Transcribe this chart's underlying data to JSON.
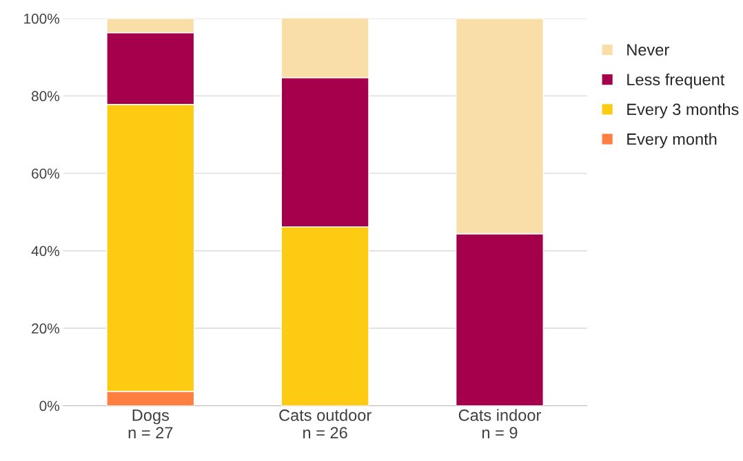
{
  "chart_data": {
    "type": "bar",
    "stacked": true,
    "categories": [
      "Dogs\nn = 27",
      "Cats outdoor\nn = 26",
      "Cats indoor\nn = 9"
    ],
    "series": [
      {
        "name": "Every month",
        "color": "#ff7f41",
        "values": [
          3.7,
          0,
          0
        ]
      },
      {
        "name": "Every 3 months",
        "color": "#fdcc12",
        "values": [
          74.1,
          46.2,
          0
        ]
      },
      {
        "name": "Less frequent",
        "color": "#a5004b",
        "values": [
          18.5,
          38.5,
          44.4
        ]
      },
      {
        "name": "Never",
        "color": "#f9dfa7",
        "values": [
          3.7,
          15.4,
          55.6
        ]
      }
    ],
    "ylim": [
      0,
      100
    ],
    "yticks": [
      {
        "value": 0,
        "label": "0%"
      },
      {
        "value": 20,
        "label": "20%"
      },
      {
        "value": 40,
        "label": "40%"
      },
      {
        "value": 60,
        "label": "60%"
      },
      {
        "value": 80,
        "label": "80%"
      },
      {
        "value": 100,
        "label": "100%"
      }
    ],
    "grid": "y",
    "legend": "right"
  }
}
